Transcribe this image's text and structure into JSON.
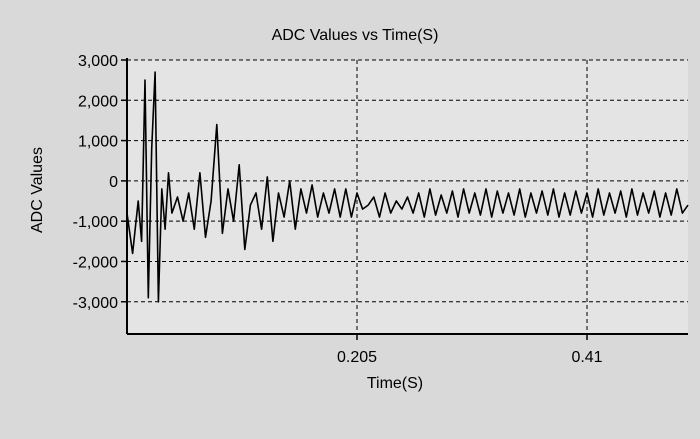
{
  "chart_data": {
    "type": "line",
    "title": "ADC Values vs Time(S)",
    "xlabel": "Time(S)",
    "ylabel": "ADC Values",
    "xlim": [
      0,
      0.5
    ],
    "ylim": [
      -3800,
      3000
    ],
    "x_ticks": [
      0.205,
      0.41
    ],
    "x_tick_labels": [
      "0.205",
      "0.41"
    ],
    "y_ticks": [
      3000,
      2000,
      1000,
      0,
      -1000,
      -2000,
      -3000
    ],
    "y_tick_labels": [
      "3,000",
      "2,000",
      "1,000",
      "0",
      "-1,000",
      "-2,000",
      "-3,000"
    ],
    "grid": true,
    "series": [
      {
        "color": "#000000",
        "x": [
          0.0,
          0.005,
          0.01,
          0.013,
          0.016,
          0.019,
          0.022,
          0.025,
          0.028,
          0.031,
          0.034,
          0.037,
          0.04,
          0.045,
          0.05,
          0.055,
          0.06,
          0.065,
          0.07,
          0.075,
          0.08,
          0.085,
          0.09,
          0.095,
          0.1,
          0.105,
          0.11,
          0.115,
          0.12,
          0.125,
          0.13,
          0.135,
          0.14,
          0.145,
          0.15,
          0.155,
          0.16,
          0.165,
          0.17,
          0.175,
          0.18,
          0.185,
          0.19,
          0.195,
          0.2,
          0.205,
          0.21,
          0.215,
          0.22,
          0.225,
          0.23,
          0.235,
          0.24,
          0.245,
          0.25,
          0.255,
          0.26,
          0.265,
          0.27,
          0.275,
          0.28,
          0.285,
          0.29,
          0.295,
          0.3,
          0.305,
          0.31,
          0.315,
          0.32,
          0.325,
          0.33,
          0.335,
          0.34,
          0.345,
          0.35,
          0.355,
          0.36,
          0.365,
          0.37,
          0.375,
          0.38,
          0.385,
          0.39,
          0.395,
          0.4,
          0.405,
          0.41,
          0.415,
          0.42,
          0.425,
          0.43,
          0.435,
          0.44,
          0.445,
          0.45,
          0.455,
          0.46,
          0.465,
          0.47,
          0.475,
          0.48,
          0.485,
          0.49,
          0.495,
          0.5
        ],
        "y": [
          -800,
          -1800,
          -500,
          -1500,
          2500,
          -2900,
          800,
          2700,
          -3000,
          -200,
          -1200,
          200,
          -800,
          -400,
          -1000,
          -300,
          -1200,
          200,
          -1400,
          -500,
          1400,
          -1300,
          -200,
          -1000,
          400,
          -1700,
          -600,
          -300,
          -1200,
          100,
          -1500,
          -300,
          -900,
          0,
          -1200,
          -200,
          -800,
          -100,
          -900,
          -300,
          -800,
          -200,
          -900,
          -200,
          -900,
          -300,
          -700,
          -600,
          -400,
          -900,
          -300,
          -800,
          -500,
          -700,
          -400,
          -800,
          -300,
          -900,
          -200,
          -850,
          -350,
          -800,
          -250,
          -900,
          -200,
          -800,
          -300,
          -850,
          -200,
          -900,
          -250,
          -800,
          -300,
          -850,
          -200,
          -900,
          -300,
          -800,
          -250,
          -850,
          -200,
          -900,
          -300,
          -850,
          -250,
          -800,
          -300,
          -900,
          -200,
          -850,
          -300,
          -800,
          -250,
          -900,
          -200,
          -850,
          -300,
          -800,
          -250,
          -900,
          -300,
          -850,
          -200,
          -800,
          -600
        ]
      }
    ]
  }
}
